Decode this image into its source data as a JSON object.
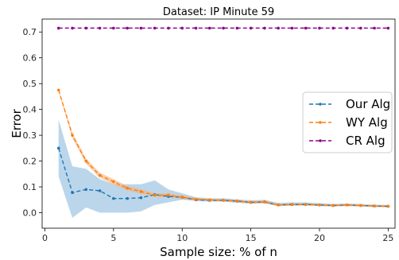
{
  "chart_data": {
    "type": "line",
    "title": "Dataset: IP Minute 59",
    "xlabel": "Sample size: % of n",
    "ylabel": "Error",
    "xlim": [
      -0.2,
      25.5
    ],
    "ylim": [
      -0.06,
      0.75
    ],
    "xticks": [
      0,
      5,
      10,
      15,
      20,
      25
    ],
    "yticks": [
      0.0,
      0.1,
      0.2,
      0.3,
      0.4,
      0.5,
      0.6,
      0.7
    ],
    "ytick_labels": [
      "0.0",
      "0.1",
      "0.2",
      "0.3",
      "0.4",
      "0.5",
      "0.6",
      "0.7"
    ],
    "grid": false,
    "legend_position": "center-right",
    "x": [
      1,
      2,
      3,
      4,
      5,
      6,
      7,
      8,
      9,
      10,
      11,
      12,
      13,
      14,
      15,
      16,
      17,
      18,
      19,
      20,
      21,
      22,
      23,
      24,
      25
    ],
    "series": [
      {
        "name": "Our Alg",
        "color": "#1f77b4",
        "band_color": "#9ec4e2",
        "values": [
          0.25,
          0.078,
          0.09,
          0.085,
          0.055,
          0.055,
          0.058,
          0.07,
          0.063,
          0.06,
          0.05,
          0.048,
          0.048,
          0.045,
          0.04,
          0.042,
          0.03,
          0.032,
          0.032,
          0.03,
          0.028,
          0.03,
          0.028,
          0.026,
          0.025
        ],
        "band_lower": [
          0.14,
          -0.02,
          0.02,
          0.0,
          0.0,
          0.0,
          0.005,
          0.03,
          0.04,
          0.05,
          0.045,
          0.043,
          0.043,
          0.038,
          0.035,
          0.036,
          0.025,
          0.027,
          0.028,
          0.026,
          0.024,
          0.026,
          0.024,
          0.022,
          0.021
        ],
        "band_upper": [
          0.36,
          0.18,
          0.17,
          0.13,
          0.11,
          0.11,
          0.11,
          0.125,
          0.09,
          0.075,
          0.06,
          0.056,
          0.056,
          0.052,
          0.048,
          0.05,
          0.038,
          0.04,
          0.04,
          0.037,
          0.034,
          0.036,
          0.034,
          0.031,
          0.03
        ]
      },
      {
        "name": "WY Alg",
        "color": "#ff7f0e",
        "band_color": "#f5b27a",
        "values": [
          0.475,
          0.3,
          0.2,
          0.145,
          0.12,
          0.095,
          0.082,
          0.068,
          0.068,
          0.06,
          0.052,
          0.05,
          0.048,
          0.045,
          0.04,
          0.042,
          0.03,
          0.032,
          0.032,
          0.03,
          0.028,
          0.03,
          0.028,
          0.026,
          0.025
        ],
        "band_lower": [
          0.47,
          0.29,
          0.19,
          0.135,
          0.108,
          0.086,
          0.073,
          0.06,
          0.06,
          0.053,
          0.047,
          0.045,
          0.043,
          0.04,
          0.035,
          0.037,
          0.026,
          0.028,
          0.028,
          0.026,
          0.024,
          0.026,
          0.024,
          0.022,
          0.021
        ],
        "band_upper": [
          0.48,
          0.31,
          0.21,
          0.155,
          0.13,
          0.104,
          0.091,
          0.076,
          0.076,
          0.067,
          0.057,
          0.055,
          0.053,
          0.05,
          0.045,
          0.047,
          0.034,
          0.036,
          0.036,
          0.034,
          0.032,
          0.034,
          0.032,
          0.03,
          0.029
        ]
      },
      {
        "name": "CR Alg",
        "color": "#8b008b",
        "values": [
          0.715,
          0.715,
          0.715,
          0.715,
          0.715,
          0.715,
          0.715,
          0.715,
          0.715,
          0.715,
          0.715,
          0.715,
          0.715,
          0.715,
          0.715,
          0.715,
          0.715,
          0.715,
          0.715,
          0.715,
          0.715,
          0.715,
          0.715,
          0.715,
          0.715
        ]
      }
    ]
  }
}
